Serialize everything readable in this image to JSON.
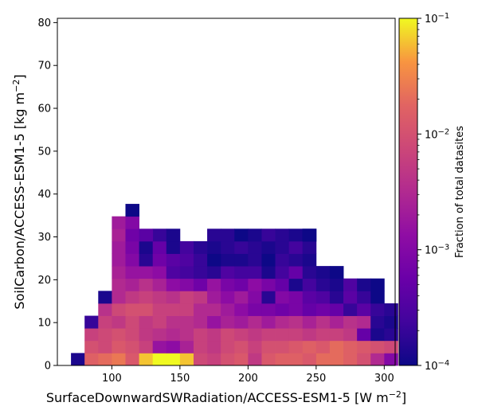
{
  "chart_data": {
    "type": "heatmap",
    "title": "",
    "xlabel": "SurfaceDownwardSWRadiation/ACCESS-ESM1-5 [W m$^{-2}$]",
    "xlabel_parts": {
      "text": "SurfaceDownwardSWRadiation/ACCESS-ESM1-5 [W m",
      "sup": "−2",
      "close": "]"
    },
    "ylabel_parts": {
      "text": "SoilCarbon/ACCESS-ESM1-5 [kg m",
      "sup": "−2",
      "close": "]"
    },
    "xlim": [
      60,
      308
    ],
    "ylim": [
      0,
      81
    ],
    "x_ticks": [
      100,
      150,
      200,
      250,
      300
    ],
    "y_ticks": [
      0,
      10,
      20,
      30,
      40,
      50,
      60,
      70,
      80
    ],
    "x_bins_start": 70,
    "x_bin_width": 10,
    "y_bin_width": 2.9,
    "colormap": "plasma",
    "colorbar": {
      "label": "Fraction of total datasites",
      "scale": "log",
      "range": [
        0.0001,
        0.1
      ],
      "tick_labels": [
        {
          "value": 0.1,
          "base": "10",
          "exp": "−1"
        },
        {
          "value": 0.01,
          "base": "10",
          "exp": "−2"
        },
        {
          "value": 0.001,
          "base": "10",
          "exp": "−3"
        },
        {
          "value": 0.0001,
          "base": "10",
          "exp": "−4"
        }
      ]
    },
    "rows_log10_fraction": [
      [
        -3.9,
        -1.8,
        -1.7,
        -1.6,
        -1.9,
        -1.2,
        -1.0,
        -1.0,
        -1.2,
        -2.1,
        -2.2,
        -2.0,
        -1.9,
        -2.3,
        -1.9,
        -1.8,
        -1.8,
        -1.9,
        -1.7,
        -1.7,
        -1.8,
        -2.0,
        -2.5,
        -3.0
      ],
      [
        null,
        -2.0,
        -2.1,
        -1.9,
        -2.0,
        -2.2,
        -2.8,
        -2.9,
        -2.6,
        -2.2,
        -2.3,
        -2.1,
        -2.0,
        -2.2,
        -2.0,
        -2.0,
        -1.9,
        -1.8,
        -1.9,
        -1.7,
        -1.8,
        -1.9,
        -2.0,
        -2.1
      ],
      [
        null,
        -2.2,
        -2.1,
        -2.0,
        -2.1,
        -2.3,
        -2.4,
        -2.5,
        -2.4,
        -2.2,
        -2.3,
        -2.1,
        -2.2,
        -2.3,
        -2.2,
        -2.2,
        -2.2,
        -2.3,
        -2.2,
        -2.2,
        -2.3,
        -3.3,
        -3.9,
        -3.8
      ],
      [
        null,
        -3.7,
        -2.2,
        -2.3,
        -2.1,
        -2.3,
        -2.2,
        -2.4,
        -2.4,
        -2.5,
        -2.8,
        -2.6,
        -2.7,
        -2.5,
        -2.7,
        -2.5,
        -2.4,
        -2.6,
        -2.4,
        -2.6,
        -2.4,
        -2.5,
        -3.8,
        -3.9
      ],
      [
        null,
        null,
        -2.4,
        -2.1,
        -2.0,
        -2.0,
        -2.2,
        -2.2,
        -2.2,
        -2.5,
        -2.5,
        -2.7,
        -2.9,
        -3.1,
        -3.1,
        -3.2,
        -3.1,
        -3.3,
        -3.2,
        -3.3,
        -3.7,
        -3.4,
        -3.7,
        -3.8
      ],
      [
        null,
        null,
        -3.9,
        -2.5,
        -2.3,
        -2.2,
        -2.3,
        -2.4,
        -2.2,
        -2.3,
        -2.7,
        -2.9,
        -2.7,
        -3.0,
        -3.8,
        -3.0,
        -3.1,
        -3.4,
        -3.5,
        -3.8,
        -3.4,
        -3.7,
        -4.0,
        null
      ],
      [
        null,
        null,
        null,
        -2.5,
        -2.6,
        -2.4,
        -2.6,
        -2.9,
        -3.0,
        -3.2,
        -2.8,
        -3.1,
        -3.2,
        -2.9,
        -3.1,
        -3.3,
        -3.9,
        -3.6,
        -3.8,
        -3.9,
        -3.5,
        -3.9,
        -4.0,
        null
      ],
      [
        null,
        null,
        null,
        -2.6,
        -2.8,
        -2.8,
        -2.9,
        -3.5,
        -3.6,
        -3.7,
        -3.8,
        -3.5,
        -3.6,
        -3.6,
        -3.9,
        -3.6,
        -3.3,
        -3.8,
        -3.9,
        -4.0,
        null,
        null,
        null,
        null
      ],
      [
        null,
        null,
        null,
        -2.7,
        -3.0,
        -3.8,
        -3.2,
        -3.4,
        -3.5,
        -3.7,
        -4.0,
        -3.9,
        -3.9,
        -3.8,
        -4.0,
        -3.7,
        -3.8,
        -3.9,
        null,
        null,
        null,
        null,
        null,
        null
      ],
      [
        null,
        null,
        null,
        -2.7,
        -3.1,
        -3.9,
        -3.3,
        -3.9,
        -3.6,
        -3.8,
        -3.9,
        -3.8,
        -3.7,
        -3.8,
        -3.9,
        -3.8,
        -3.6,
        -3.8,
        null,
        null,
        null,
        null,
        null,
        null
      ],
      [
        null,
        null,
        null,
        -2.6,
        -3.2,
        null,
        -3.7,
        -3.9,
        null,
        null,
        -3.8,
        -3.8,
        -4.0,
        -3.9,
        -3.7,
        -3.8,
        -3.9,
        -4.0,
        null,
        null,
        null,
        null,
        null,
        null
      ],
      [
        null,
        null,
        null,
        -2.7,
        -3.0,
        null,
        null,
        null,
        null,
        null,
        null,
        null,
        null,
        null,
        null,
        null,
        null,
        null,
        null,
        null,
        null,
        null,
        null,
        null
      ],
      [
        null,
        null,
        null,
        null,
        -4.0,
        null,
        null,
        null,
        null,
        null,
        null,
        null,
        null,
        null,
        null,
        null,
        null,
        null,
        null,
        null,
        null,
        null,
        null,
        null
      ],
      [
        null,
        null,
        null,
        null,
        null,
        null,
        null,
        null,
        null,
        null,
        null,
        null,
        null,
        null,
        null,
        null,
        null,
        null,
        null,
        null,
        null,
        null,
        null,
        null
      ],
      [
        null,
        null,
        null,
        null,
        null,
        null,
        null,
        null,
        null,
        null,
        null,
        null,
        null,
        null,
        null,
        null,
        null,
        null,
        null,
        null,
        null,
        null,
        null,
        null
      ],
      [
        null,
        null,
        null,
        null,
        null,
        null,
        null,
        null,
        null,
        null,
        null,
        null,
        null,
        null,
        null,
        null,
        null,
        null,
        null,
        null,
        null,
        null,
        null,
        null
      ],
      [
        null,
        null,
        null,
        null,
        null,
        null,
        null,
        null,
        null,
        null,
        null,
        null,
        null,
        null,
        null,
        null,
        null,
        null,
        null,
        null,
        null,
        null,
        null,
        null
      ],
      [
        null,
        null,
        null,
        null,
        null,
        null,
        null,
        null,
        null,
        null,
        null,
        null,
        null,
        null,
        null,
        null,
        null,
        null,
        null,
        null,
        null,
        null,
        null,
        null
      ],
      [
        null,
        null,
        null,
        null,
        null,
        null,
        null,
        null,
        null,
        null,
        null,
        null,
        null,
        null,
        null,
        null,
        null,
        null,
        null,
        null,
        null,
        null,
        null,
        null
      ],
      [
        null,
        null,
        null,
        null,
        null,
        null,
        null,
        null,
        null,
        null,
        null,
        null,
        null,
        null,
        null,
        null,
        null,
        null,
        null,
        null,
        null,
        null,
        null,
        null
      ],
      [
        null,
        null,
        null,
        null,
        null,
        null,
        null,
        null,
        null,
        null,
        null,
        null,
        null,
        null,
        null,
        null,
        null,
        null,
        null,
        null,
        null,
        null,
        null,
        null
      ],
      [
        null,
        null,
        null,
        null,
        null,
        null,
        null,
        null,
        null,
        null,
        null,
        null,
        null,
        null,
        null,
        null,
        null,
        null,
        null,
        null,
        null,
        null,
        null,
        null
      ],
      [
        null,
        null,
        null,
        null,
        null,
        null,
        null,
        null,
        null,
        null,
        null,
        null,
        null,
        null,
        null,
        null,
        null,
        null,
        null,
        null,
        null,
        null,
        null,
        null
      ],
      [
        null,
        null,
        null,
        null,
        null,
        null,
        null,
        null,
        null,
        null,
        null,
        null,
        null,
        null,
        null,
        null,
        null,
        null,
        null,
        null,
        null,
        null,
        null,
        null
      ],
      [
        null,
        null,
        null,
        null,
        null,
        null,
        null,
        null,
        null,
        null,
        null,
        null,
        null,
        null,
        null,
        null,
        null,
        null,
        null,
        null,
        null,
        null,
        null,
        null
      ],
      [
        null,
        null,
        null,
        null,
        null,
        null,
        null,
        null,
        null,
        null,
        null,
        null,
        null,
        null,
        null,
        null,
        null,
        null,
        null,
        null,
        null,
        null,
        null,
        null
      ],
      [
        null,
        null,
        null,
        null,
        null,
        null,
        null,
        null,
        null,
        null,
        null,
        null,
        null,
        null,
        null,
        null,
        null,
        null,
        null,
        null,
        null,
        null,
        null,
        null
      ],
      [
        null,
        null,
        null,
        null,
        null,
        null,
        null,
        null,
        null,
        null,
        null,
        null,
        null,
        null,
        null,
        null,
        null,
        null,
        null,
        null,
        null,
        null,
        null,
        null
      ]
    ],
    "extra_cells": [
      {
        "x_bin": 5,
        "y_bin": 10,
        "log10_fraction": -3.4
      },
      {
        "x_bin": 17,
        "y_bin": 10,
        "log10_fraction": -4.0
      }
    ]
  }
}
